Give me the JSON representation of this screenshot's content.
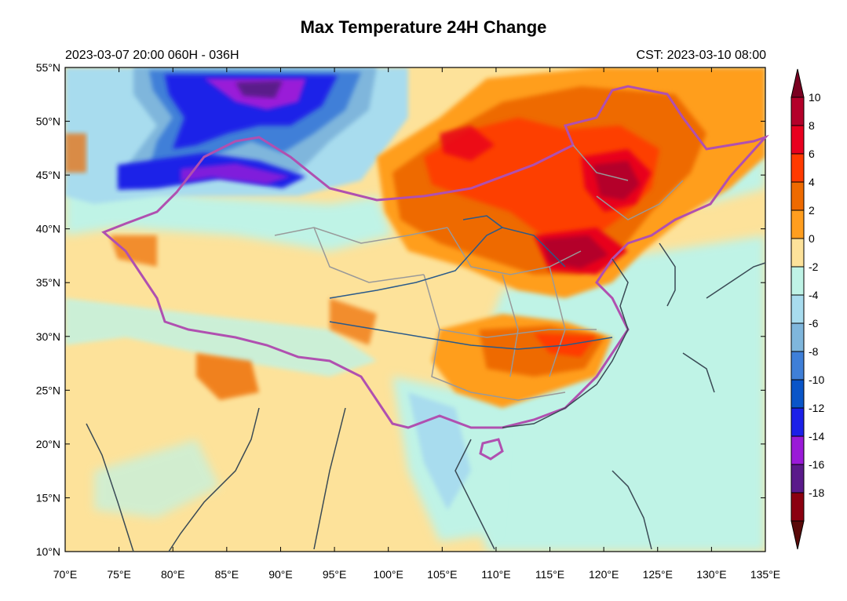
{
  "title": "Max Temperature 24H Change",
  "subtitle_left": "2023-03-07 20:00  060H - 036H",
  "subtitle_right": "CST: 2023-03-10 08:00",
  "lat_labels": [
    "55°N",
    "50°N",
    "45°N",
    "40°N",
    "35°N",
    "30°N",
    "25°N",
    "20°N",
    "15°N",
    "10°N"
  ],
  "lon_labels": [
    "70°E",
    "75°E",
    "80°E",
    "85°E",
    "90°E",
    "95°E",
    "100°E",
    "105°E",
    "110°E",
    "115°E",
    "120°E",
    "125°E",
    "130°E",
    "135°E"
  ],
  "colorbar": {
    "labels": [
      "10",
      "8",
      "6",
      "4",
      "2",
      "0",
      "-2",
      "-4",
      "-6",
      "-8",
      "-10",
      "-12",
      "-14",
      "-16",
      "-18"
    ],
    "colors": [
      "#7a0021",
      "#b4002a",
      "#e8001f",
      "#ff3a00",
      "#ee6a00",
      "#ff9e1f",
      "#fde29a",
      "#bff3e6",
      "#a8dcee",
      "#7fb6dc",
      "#3f7fd8",
      "#0a55c8",
      "#1b20e8",
      "#9a1ad8",
      "#5a1a8a",
      "#8b0010",
      "#5a0a0a"
    ]
  },
  "map_data": {
    "field": "24h maximum temperature change",
    "lon_range": [
      70,
      135
    ],
    "lat_range": [
      10,
      55
    ],
    "warm_regions": [
      "North China",
      "Northeast China",
      "Inner Mongolia",
      "Central China"
    ],
    "cold_regions": [
      "Northwest (Mongolia/Altai)",
      "Western Siberia"
    ]
  }
}
